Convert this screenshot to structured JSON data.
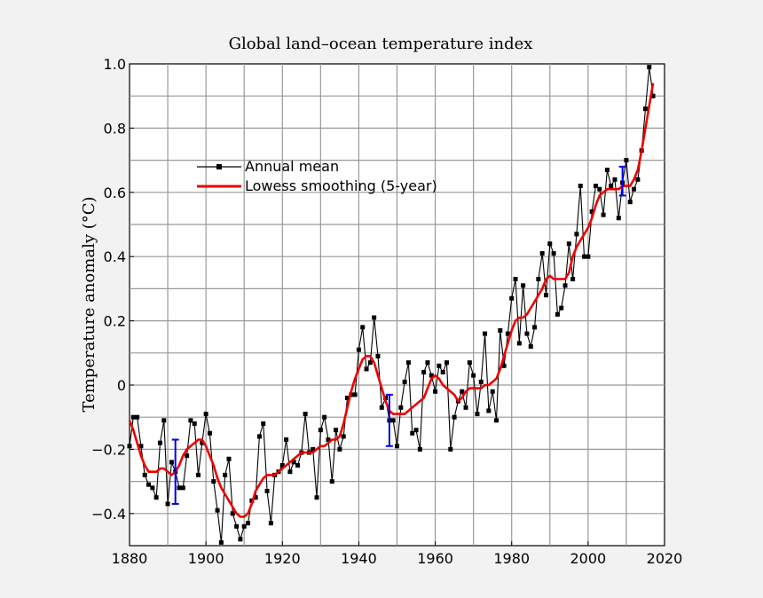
{
  "chart_data": {
    "type": "line",
    "title": "Global land–ocean temperature index",
    "ylabel": "Temperature anomaly (°C)",
    "xlabel": "",
    "xlim": [
      1880,
      2020
    ],
    "ylim": [
      -0.5,
      1.0
    ],
    "x_ticks": [
      1880,
      1900,
      1920,
      1940,
      1960,
      1980,
      2000,
      2020
    ],
    "y_ticks": [
      1.0,
      0.8,
      0.6,
      0.4,
      0.2,
      0,
      -0.2,
      -0.4
    ],
    "y_tick_labels": [
      "1.0",
      "0.8",
      "0.6",
      "0.4",
      "0.2",
      "0",
      "−0.2",
      "−0.4"
    ],
    "x_grid_step": 10,
    "y_grid_step": 0.1,
    "grid": true,
    "legend_position": "upper-left",
    "colors": {
      "annual": "#000000",
      "smooth": "#ee0000",
      "error": "#0000ee"
    },
    "series": [
      {
        "name": "Annual mean",
        "x": [
          1880,
          1881,
          1882,
          1883,
          1884,
          1885,
          1886,
          1887,
          1888,
          1889,
          1890,
          1891,
          1892,
          1893,
          1894,
          1895,
          1896,
          1897,
          1898,
          1899,
          1900,
          1901,
          1902,
          1903,
          1904,
          1905,
          1906,
          1907,
          1908,
          1909,
          1910,
          1911,
          1912,
          1913,
          1914,
          1915,
          1916,
          1917,
          1918,
          1919,
          1920,
          1921,
          1922,
          1923,
          1924,
          1925,
          1926,
          1927,
          1928,
          1929,
          1930,
          1931,
          1932,
          1933,
          1934,
          1935,
          1936,
          1937,
          1938,
          1939,
          1940,
          1941,
          1942,
          1943,
          1944,
          1945,
          1946,
          1947,
          1948,
          1949,
          1950,
          1951,
          1952,
          1953,
          1954,
          1955,
          1956,
          1957,
          1958,
          1959,
          1960,
          1961,
          1962,
          1963,
          1964,
          1965,
          1966,
          1967,
          1968,
          1969,
          1970,
          1971,
          1972,
          1973,
          1974,
          1975,
          1976,
          1977,
          1978,
          1979,
          1980,
          1981,
          1982,
          1983,
          1984,
          1985,
          1986,
          1987,
          1988,
          1989,
          1990,
          1991,
          1992,
          1993,
          1994,
          1995,
          1996,
          1997,
          1998,
          1999,
          2000,
          2001,
          2002,
          2003,
          2004,
          2005,
          2006,
          2007,
          2008,
          2009,
          2010,
          2011,
          2012,
          2013,
          2014,
          2015,
          2016,
          2017
        ],
        "y": [
          -0.19,
          -0.1,
          -0.1,
          -0.19,
          -0.28,
          -0.31,
          -0.32,
          -0.35,
          -0.18,
          -0.11,
          -0.37,
          -0.24,
          -0.27,
          -0.32,
          -0.32,
          -0.22,
          -0.11,
          -0.12,
          -0.28,
          -0.18,
          -0.09,
          -0.15,
          -0.3,
          -0.39,
          -0.49,
          -0.28,
          -0.23,
          -0.4,
          -0.44,
          -0.48,
          -0.44,
          -0.43,
          -0.36,
          -0.35,
          -0.16,
          -0.12,
          -0.33,
          -0.43,
          -0.28,
          -0.27,
          -0.25,
          -0.17,
          -0.27,
          -0.24,
          -0.25,
          -0.21,
          -0.09,
          -0.21,
          -0.2,
          -0.35,
          -0.14,
          -0.1,
          -0.17,
          -0.3,
          -0.14,
          -0.2,
          -0.16,
          -0.04,
          -0.03,
          -0.03,
          0.11,
          0.18,
          0.05,
          0.07,
          0.21,
          0.09,
          -0.07,
          -0.04,
          -0.11,
          -0.11,
          -0.19,
          -0.07,
          0.01,
          0.07,
          -0.15,
          -0.14,
          -0.2,
          0.04,
          0.07,
          0.03,
          -0.02,
          0.06,
          0.04,
          0.07,
          -0.2,
          -0.1,
          -0.05,
          -0.02,
          -0.07,
          0.07,
          0.03,
          -0.09,
          0.01,
          0.16,
          -0.08,
          -0.02,
          -0.11,
          0.17,
          0.06,
          0.16,
          0.27,
          0.33,
          0.13,
          0.31,
          0.16,
          0.12,
          0.18,
          0.33,
          0.41,
          0.28,
          0.44,
          0.41,
          0.22,
          0.24,
          0.31,
          0.44,
          0.33,
          0.47,
          0.62,
          0.4,
          0.4,
          0.54,
          0.62,
          0.61,
          0.53,
          0.67,
          0.62,
          0.64,
          0.52,
          0.63,
          0.7,
          0.57,
          0.61,
          0.64,
          0.73,
          0.86,
          0.99,
          0.9
        ]
      },
      {
        "name": "Lowess smoothing (5-year)",
        "x": [
          1880,
          1881,
          1882,
          1883,
          1884,
          1885,
          1886,
          1887,
          1888,
          1889,
          1890,
          1891,
          1892,
          1893,
          1894,
          1895,
          1896,
          1897,
          1898,
          1899,
          1900,
          1901,
          1902,
          1903,
          1904,
          1905,
          1906,
          1907,
          1908,
          1909,
          1910,
          1911,
          1912,
          1913,
          1914,
          1915,
          1916,
          1917,
          1918,
          1919,
          1920,
          1921,
          1922,
          1923,
          1924,
          1925,
          1926,
          1927,
          1928,
          1929,
          1930,
          1931,
          1932,
          1933,
          1934,
          1935,
          1936,
          1937,
          1938,
          1939,
          1940,
          1941,
          1942,
          1943,
          1944,
          1945,
          1946,
          1947,
          1948,
          1949,
          1950,
          1951,
          1952,
          1953,
          1954,
          1955,
          1956,
          1957,
          1958,
          1959,
          1960,
          1961,
          1962,
          1963,
          1964,
          1965,
          1966,
          1967,
          1968,
          1969,
          1970,
          1971,
          1972,
          1973,
          1974,
          1975,
          1976,
          1977,
          1978,
          1979,
          1980,
          1981,
          1982,
          1983,
          1984,
          1985,
          1986,
          1987,
          1988,
          1989,
          1990,
          1991,
          1992,
          1993,
          1994,
          1995,
          1996,
          1997,
          1998,
          1999,
          2000,
          2001,
          2002,
          2003,
          2004,
          2005,
          2006,
          2007,
          2008,
          2009,
          2010,
          2011,
          2012,
          2013,
          2014,
          2015,
          2016,
          2017
        ],
        "y": [
          -0.11,
          -0.14,
          -0.18,
          -0.22,
          -0.25,
          -0.27,
          -0.27,
          -0.27,
          -0.26,
          -0.26,
          -0.27,
          -0.28,
          -0.27,
          -0.25,
          -0.22,
          -0.2,
          -0.19,
          -0.18,
          -0.17,
          -0.17,
          -0.19,
          -0.22,
          -0.25,
          -0.29,
          -0.32,
          -0.34,
          -0.36,
          -0.38,
          -0.4,
          -0.41,
          -0.41,
          -0.4,
          -0.37,
          -0.33,
          -0.31,
          -0.29,
          -0.28,
          -0.28,
          -0.28,
          -0.27,
          -0.26,
          -0.25,
          -0.24,
          -0.23,
          -0.22,
          -0.21,
          -0.21,
          -0.21,
          -0.21,
          -0.2,
          -0.19,
          -0.19,
          -0.18,
          -0.17,
          -0.17,
          -0.16,
          -0.12,
          -0.07,
          -0.02,
          0.02,
          0.05,
          0.08,
          0.09,
          0.09,
          0.07,
          0.03,
          -0.01,
          -0.05,
          -0.08,
          -0.09,
          -0.09,
          -0.09,
          -0.09,
          -0.08,
          -0.07,
          -0.06,
          -0.05,
          -0.04,
          -0.01,
          0.02,
          0.03,
          0.02,
          0.0,
          -0.01,
          -0.02,
          -0.03,
          -0.05,
          -0.04,
          -0.02,
          -0.01,
          -0.01,
          -0.01,
          -0.01,
          0.0,
          0.0,
          0.01,
          0.02,
          0.05,
          0.09,
          0.13,
          0.17,
          0.2,
          0.21,
          0.21,
          0.22,
          0.24,
          0.26,
          0.28,
          0.3,
          0.33,
          0.34,
          0.33,
          0.33,
          0.33,
          0.33,
          0.35,
          0.4,
          0.43,
          0.45,
          0.47,
          0.49,
          0.52,
          0.56,
          0.59,
          0.6,
          0.61,
          0.61,
          0.61,
          0.61,
          0.62,
          0.62,
          0.62,
          0.64,
          0.67,
          0.73,
          0.8,
          0.87,
          0.94
        ]
      }
    ],
    "uncertainty_bars": [
      {
        "x": 1892,
        "low": -0.37,
        "high": -0.17
      },
      {
        "x": 1948,
        "low": -0.19,
        "high": -0.03
      },
      {
        "x": 2009,
        "low": 0.59,
        "high": 0.68
      }
    ],
    "legend": {
      "annual_label": "Annual mean",
      "smooth_label": "Lowess smoothing (5-year)"
    }
  }
}
